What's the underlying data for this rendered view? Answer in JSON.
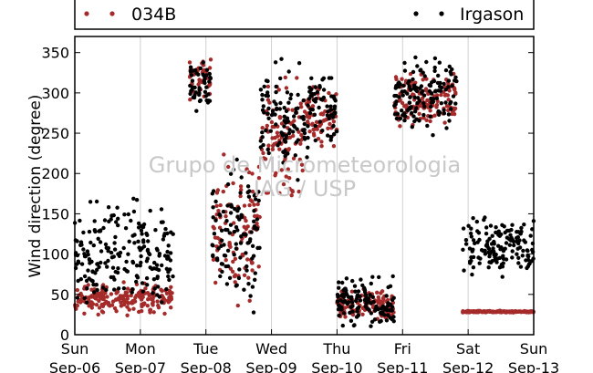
{
  "chart_data": {
    "type": "scatter",
    "title": "",
    "xlabel": "",
    "ylabel": "Wind direction (degree)",
    "ylim": [
      0,
      370
    ],
    "yticks": [
      0,
      50,
      100,
      150,
      200,
      250,
      300,
      350
    ],
    "xlim": [
      "2015-09-06",
      "2015-09-13"
    ],
    "xticks": [
      {
        "day": "Sun",
        "date": "Sep-06"
      },
      {
        "day": "Mon",
        "date": "Sep-07"
      },
      {
        "day": "Tue",
        "date": "Sep-08"
      },
      {
        "day": "Wed",
        "date": "Sep-09"
      },
      {
        "day": "Thu",
        "date": "Sep-10"
      },
      {
        "day": "Fri",
        "date": "Sep-11"
      },
      {
        "day": "Sat",
        "date": "Sep-12"
      },
      {
        "day": "Sun",
        "date": "Sep-13"
      }
    ],
    "grid": "vertical",
    "legend_position": "top",
    "watermark": [
      "Grupo de Micrometeorologia",
      "IAG / USP"
    ],
    "series": [
      {
        "name": "034B",
        "color": "#a52a2a",
        "description_of_trend": [
          {
            "from": "Sep-06 00:00",
            "to": "Sep-07 12:00",
            "range": [
              20,
              70
            ]
          },
          {
            "from": "Sep-07 18:00",
            "to": "Sep-08 02:00",
            "range": [
              280,
              355
            ]
          },
          {
            "from": "Sep-08 02:00",
            "to": "Sep-08 20:00",
            "range": [
              20,
              250
            ]
          },
          {
            "from": "Sep-08 20:00",
            "to": "Sep-09 12:00",
            "range": [
              150,
              340
            ]
          },
          {
            "from": "Sep-09 12:00",
            "to": "Sep-10 00:00",
            "range": [
              220,
              320
            ]
          },
          {
            "from": "Sep-10 00:00",
            "to": "Sep-10 21:00",
            "range": [
              10,
              60
            ]
          },
          {
            "from": "Sep-10 21:00",
            "to": "Sep-11 20:00",
            "range": [
              240,
              340
            ]
          },
          {
            "from": "Sep-11 22:00",
            "to": "Sep-13 00:00",
            "range": [
              27,
              30
            ]
          }
        ]
      },
      {
        "name": "Irgason",
        "color": "#000000",
        "description_of_trend": [
          {
            "from": "Sep-06 00:00",
            "to": "Sep-07 12:00",
            "range": [
              15,
              190
            ]
          },
          {
            "from": "Sep-07 18:00",
            "to": "Sep-08 02:00",
            "range": [
              260,
              360
            ]
          },
          {
            "from": "Sep-08 02:00",
            "to": "Sep-08 20:00",
            "range": [
              0,
              250
            ]
          },
          {
            "from": "Sep-08 20:00",
            "to": "Sep-09 12:00",
            "range": [
              180,
              360
            ]
          },
          {
            "from": "Sep-09 12:00",
            "to": "Sep-10 00:00",
            "range": [
              200,
              355
            ]
          },
          {
            "from": "Sep-10 00:00",
            "to": "Sep-10 21:00",
            "range": [
              0,
              80
            ]
          },
          {
            "from": "Sep-10 21:00",
            "to": "Sep-11 20:00",
            "range": [
              240,
              360
            ]
          },
          {
            "from": "Sep-11 22:00",
            "to": "Sep-13 00:00",
            "range": [
              60,
              160
            ]
          }
        ]
      }
    ]
  }
}
